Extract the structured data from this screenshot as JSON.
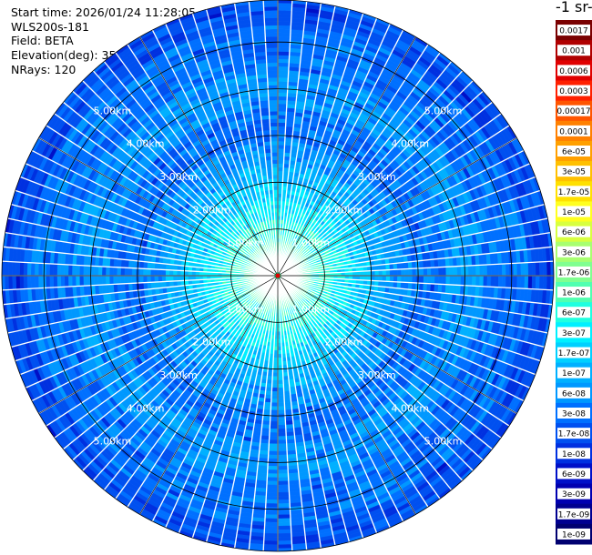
{
  "header": {
    "start_time": "Start time: 2026/01/24 11:28:05",
    "instrument": "WLS200s-181",
    "field": "Field: BETA",
    "elevation": "Elevation(deg): 35.00",
    "nrays": "NRays: 120"
  },
  "chart_data": {
    "type": "ppi",
    "field": "BETA",
    "elevation_deg": 35.0,
    "n_rays": 120,
    "range_rings_km": [
      1,
      2,
      3,
      4,
      5
    ],
    "range_labels": [
      "1.00km",
      "2.00km",
      "3.00km",
      "4.00km",
      "5.00km"
    ],
    "max_range_km": 5.9,
    "colorbar": {
      "title": "-1 sr-",
      "labels": [
        "0.0017",
        "0.001",
        "0.0006",
        "0.0003",
        "0.00017",
        "0.0001",
        "6e-05",
        "3e-05",
        "1.7e-05",
        "1e-05",
        "6e-06",
        "3e-06",
        "1.7e-06",
        "1e-06",
        "6e-07",
        "3e-07",
        "1.7e-07",
        "1e-07",
        "6e-08",
        "3e-08",
        "1.7e-08",
        "1e-08",
        "6e-09",
        "3e-09",
        "1.7e-09",
        "1e-09"
      ],
      "colors": [
        "#7a0000",
        "#b00000",
        "#e00000",
        "#ff2000",
        "#ff5500",
        "#ff8000",
        "#ffa000",
        "#ffc000",
        "#ffe000",
        "#ffff20",
        "#d8ff40",
        "#a8ff70",
        "#80ff90",
        "#50ffb0",
        "#20ffe0",
        "#00f0ff",
        "#00d0ff",
        "#00b0ff",
        "#0098ff",
        "#0070ff",
        "#0050f0",
        "#0030e0",
        "#0010c8",
        "#0000b0",
        "#000090",
        "#000070"
      ]
    },
    "beta_profile": [
      {
        "range_km": 0.0,
        "beta": 1.7e-06
      },
      {
        "range_km": 1.0,
        "beta": 6e-07
      },
      {
        "range_km": 1.8,
        "beta": 1.7e-07
      },
      {
        "range_km": 2.6,
        "beta": 6e-08
      },
      {
        "range_km": 3.2,
        "beta": 3e-08
      },
      {
        "range_km": 4.0,
        "beta": 6e-08
      },
      {
        "range_km": 4.8,
        "beta": 3e-08
      },
      {
        "range_km": 5.9,
        "beta": 1.7e-08
      }
    ]
  }
}
